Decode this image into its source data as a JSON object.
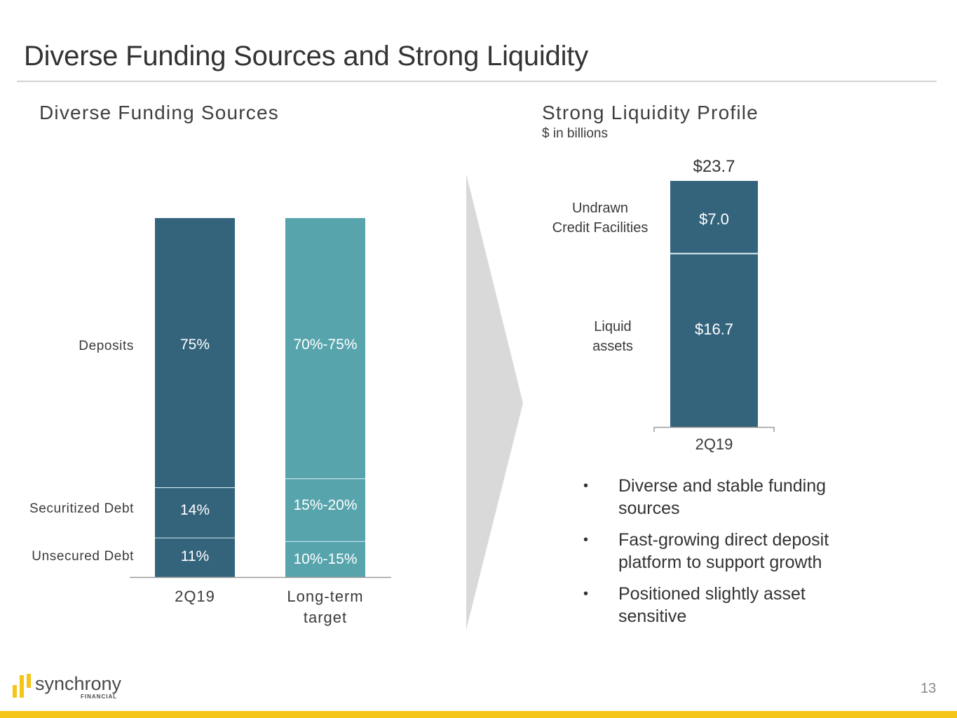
{
  "title": "Diverse Funding Sources and Strong Liquidity",
  "left_section": {
    "title": "Diverse Funding Sources"
  },
  "right_section": {
    "title": "Strong Liquidity Profile",
    "subtitle": "$ in billions"
  },
  "colors": {
    "dark_teal": "#34647c",
    "light_teal": "#57a4ad",
    "arrow_gray": "#d9d9d9",
    "accent_yellow": "#f5c518"
  },
  "chart_data": [
    {
      "type": "bar",
      "stacked": true,
      "title": "Diverse Funding Sources",
      "categories": [
        "2Q19",
        "Long-term target"
      ],
      "category_labels": [
        [
          "2Q19"
        ],
        [
          "Long-term",
          "target"
        ]
      ],
      "segment_labels": [
        "Deposits",
        "Securitized Debt",
        "Unsecured Debt"
      ],
      "series": [
        {
          "name": "Deposits",
          "values": [
            75,
            72.5
          ],
          "labels": [
            "75%",
            "70%-75%"
          ]
        },
        {
          "name": "Securitized Debt",
          "values": [
            14,
            17.5
          ],
          "labels": [
            "14%",
            "15%-20%"
          ]
        },
        {
          "name": "Unsecured Debt",
          "values": [
            11,
            10
          ],
          "labels": [
            "11%",
            "10%-15%"
          ]
        }
      ],
      "ylim": [
        0,
        100
      ],
      "units": "percent",
      "grid": false
    },
    {
      "type": "bar",
      "stacked": true,
      "title": "Strong Liquidity Profile",
      "subtitle": "$ in billions",
      "categories": [
        "2Q19"
      ],
      "total": 23.7,
      "total_label": "$23.7",
      "series": [
        {
          "name": "Liquid assets",
          "label_lines": [
            "Liquid",
            "assets"
          ],
          "values": [
            16.7
          ],
          "labels": [
            "$16.7"
          ]
        },
        {
          "name": "Undrawn Credit Facilities",
          "label_lines": [
            "Undrawn",
            "Credit Facilities"
          ],
          "values": [
            7.0
          ],
          "labels": [
            "$7.0"
          ]
        }
      ],
      "ylim": [
        0,
        23.7
      ],
      "grid": false
    }
  ],
  "bullets": [
    "Diverse and stable funding sources",
    "Fast-growing direct deposit platform to support growth",
    "Positioned slightly asset sensitive"
  ],
  "bullet_symbol": "•",
  "logo": {
    "name": "synchrony",
    "tagline": "FINANCIAL"
  },
  "page_number": "13"
}
